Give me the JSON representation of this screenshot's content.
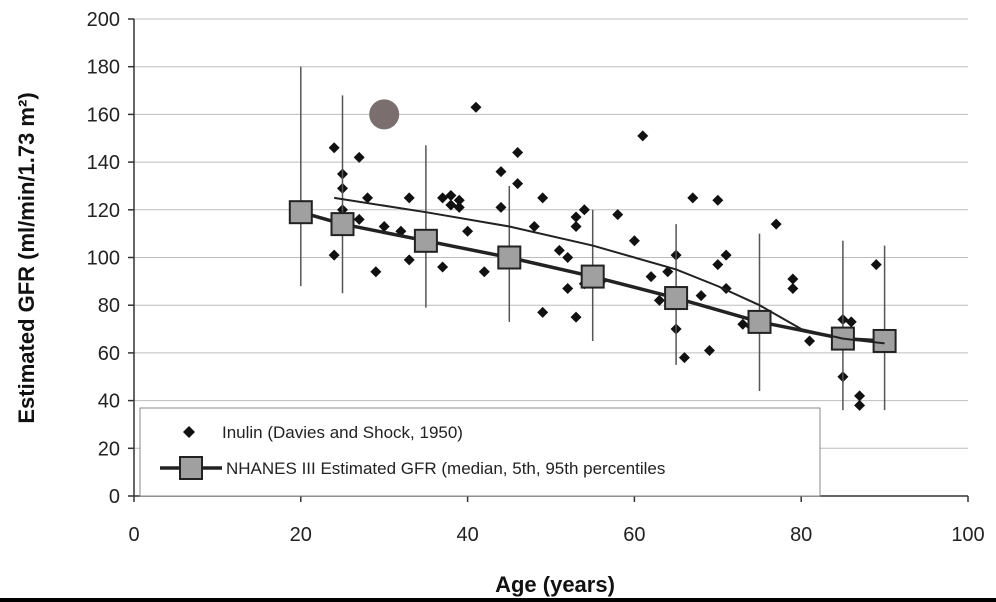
{
  "chart_data": {
    "type": "scatter",
    "xlabel": "Age (years)",
    "ylabel": "Estimated GFR (ml/min/1.73 m²)",
    "xlim": [
      0,
      100
    ],
    "ylim": [
      0,
      200
    ],
    "x_ticks": [
      0,
      20,
      40,
      60,
      80,
      100
    ],
    "y_ticks": [
      0,
      20,
      40,
      60,
      80,
      100,
      120,
      140,
      160,
      180,
      200
    ],
    "grid": "horizontal",
    "legend_position": "bottom-left",
    "series": [
      {
        "name": "Inulin (Davies and Shock, 1950)",
        "kind": "scatter",
        "marker": "diamond",
        "color": "#111111",
        "points": [
          [
            24,
            146
          ],
          [
            25,
            135
          ],
          [
            25,
            129
          ],
          [
            25,
            120
          ],
          [
            24,
            101
          ],
          [
            27,
            142
          ],
          [
            28,
            125
          ],
          [
            27,
            116
          ],
          [
            29,
            94
          ],
          [
            30,
            113
          ],
          [
            32,
            111
          ],
          [
            33,
            125
          ],
          [
            33,
            99
          ],
          [
            37,
            125
          ],
          [
            37,
            96
          ],
          [
            38,
            126
          ],
          [
            38,
            122
          ],
          [
            39,
            124
          ],
          [
            39,
            121
          ],
          [
            40,
            111
          ],
          [
            41,
            163
          ],
          [
            42,
            94
          ],
          [
            44,
            136
          ],
          [
            44,
            121
          ],
          [
            46,
            144
          ],
          [
            46,
            131
          ],
          [
            48,
            113
          ],
          [
            49,
            125
          ],
          [
            49,
            77
          ],
          [
            51,
            103
          ],
          [
            52,
            100
          ],
          [
            52,
            87
          ],
          [
            53,
            117
          ],
          [
            53,
            113
          ],
          [
            53,
            75
          ],
          [
            54,
            120
          ],
          [
            54,
            89
          ],
          [
            56,
            90
          ],
          [
            58,
            118
          ],
          [
            60,
            107
          ],
          [
            61,
            151
          ],
          [
            62,
            92
          ],
          [
            63,
            82
          ],
          [
            64,
            94
          ],
          [
            65,
            101
          ],
          [
            65,
            70
          ],
          [
            66,
            58
          ],
          [
            67,
            125
          ],
          [
            68,
            84
          ],
          [
            69,
            61
          ],
          [
            70,
            124
          ],
          [
            70,
            97
          ],
          [
            71,
            101
          ],
          [
            71,
            87
          ],
          [
            73,
            72
          ],
          [
            74,
            71
          ],
          [
            77,
            114
          ],
          [
            79,
            91
          ],
          [
            79,
            87
          ],
          [
            81,
            65
          ],
          [
            85,
            50
          ],
          [
            85,
            74
          ],
          [
            86,
            73
          ],
          [
            87,
            42
          ],
          [
            87,
            38
          ],
          [
            89,
            97
          ]
        ]
      },
      {
        "name": "NHANES III Estimated GFR (median, 5th, 95th percentiles",
        "kind": "line-errorbar",
        "marker": "square",
        "color": "#222222",
        "marker_fill": "#a0a0a0",
        "points": [
          {
            "x": 20,
            "y": 119,
            "lo": 88,
            "hi": 180
          },
          {
            "x": 25,
            "y": 114,
            "lo": 85,
            "hi": 168
          },
          {
            "x": 35,
            "y": 107,
            "lo": 79,
            "hi": 147
          },
          {
            "x": 45,
            "y": 100,
            "lo": 73,
            "hi": 130
          },
          {
            "x": 55,
            "y": 92,
            "lo": 65,
            "hi": 120
          },
          {
            "x": 65,
            "y": 83,
            "lo": 55,
            "hi": 114
          },
          {
            "x": 75,
            "y": 73,
            "lo": 44,
            "hi": 110
          },
          {
            "x": 85,
            "y": 66,
            "lo": 36,
            "hi": 107
          },
          {
            "x": 90,
            "y": 65,
            "lo": 36,
            "hi": 105
          }
        ]
      },
      {
        "name": "",
        "kind": "line",
        "color": "#222222",
        "points": [
          [
            24,
            125
          ],
          [
            35,
            119
          ],
          [
            45,
            113
          ],
          [
            55,
            105
          ],
          [
            65,
            95
          ],
          [
            70,
            88
          ],
          [
            75,
            80
          ],
          [
            80,
            70
          ],
          [
            85,
            66
          ],
          [
            90,
            64
          ]
        ]
      },
      {
        "name": "",
        "kind": "marker",
        "marker": "circle",
        "color": "#7a6e6e",
        "points": [
          [
            30,
            160
          ]
        ]
      }
    ]
  }
}
